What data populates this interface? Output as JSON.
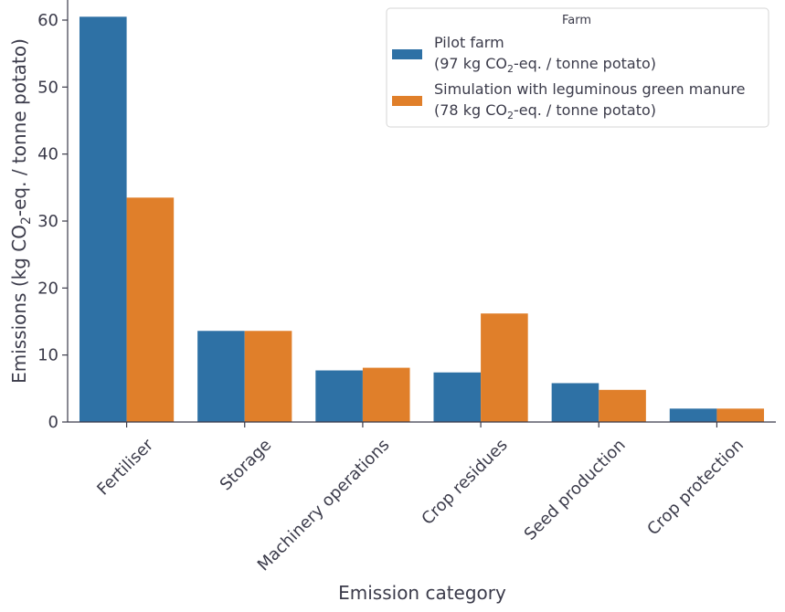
{
  "chart_data": {
    "type": "bar",
    "xlabel": "Emission category",
    "ylabel": "Emissions (kg CO₂-eq. / tonne potato)",
    "ylim": [
      0,
      63
    ],
    "yticks": [
      0,
      10,
      20,
      30,
      40,
      50,
      60
    ],
    "categories": [
      "Fertiliser",
      "Storage",
      "Machinery operations",
      "Crop residues",
      "Seed production",
      "Crop protection"
    ],
    "series": [
      {
        "name": "Pilot farm\n(97 kg CO₂-eq. / tonne potato)",
        "color": "#2e71a5",
        "values": [
          60.5,
          13.6,
          7.7,
          7.4,
          5.8,
          2.0
        ]
      },
      {
        "name": "Simulation with leguminous green manure\n(78 kg CO₂-eq. / tonne potato)",
        "color": "#e07f2a",
        "values": [
          33.5,
          13.6,
          8.1,
          16.2,
          4.8,
          2.0
        ]
      }
    ],
    "legend": {
      "title": "Farm",
      "placement": "top-right"
    },
    "grid": false
  }
}
